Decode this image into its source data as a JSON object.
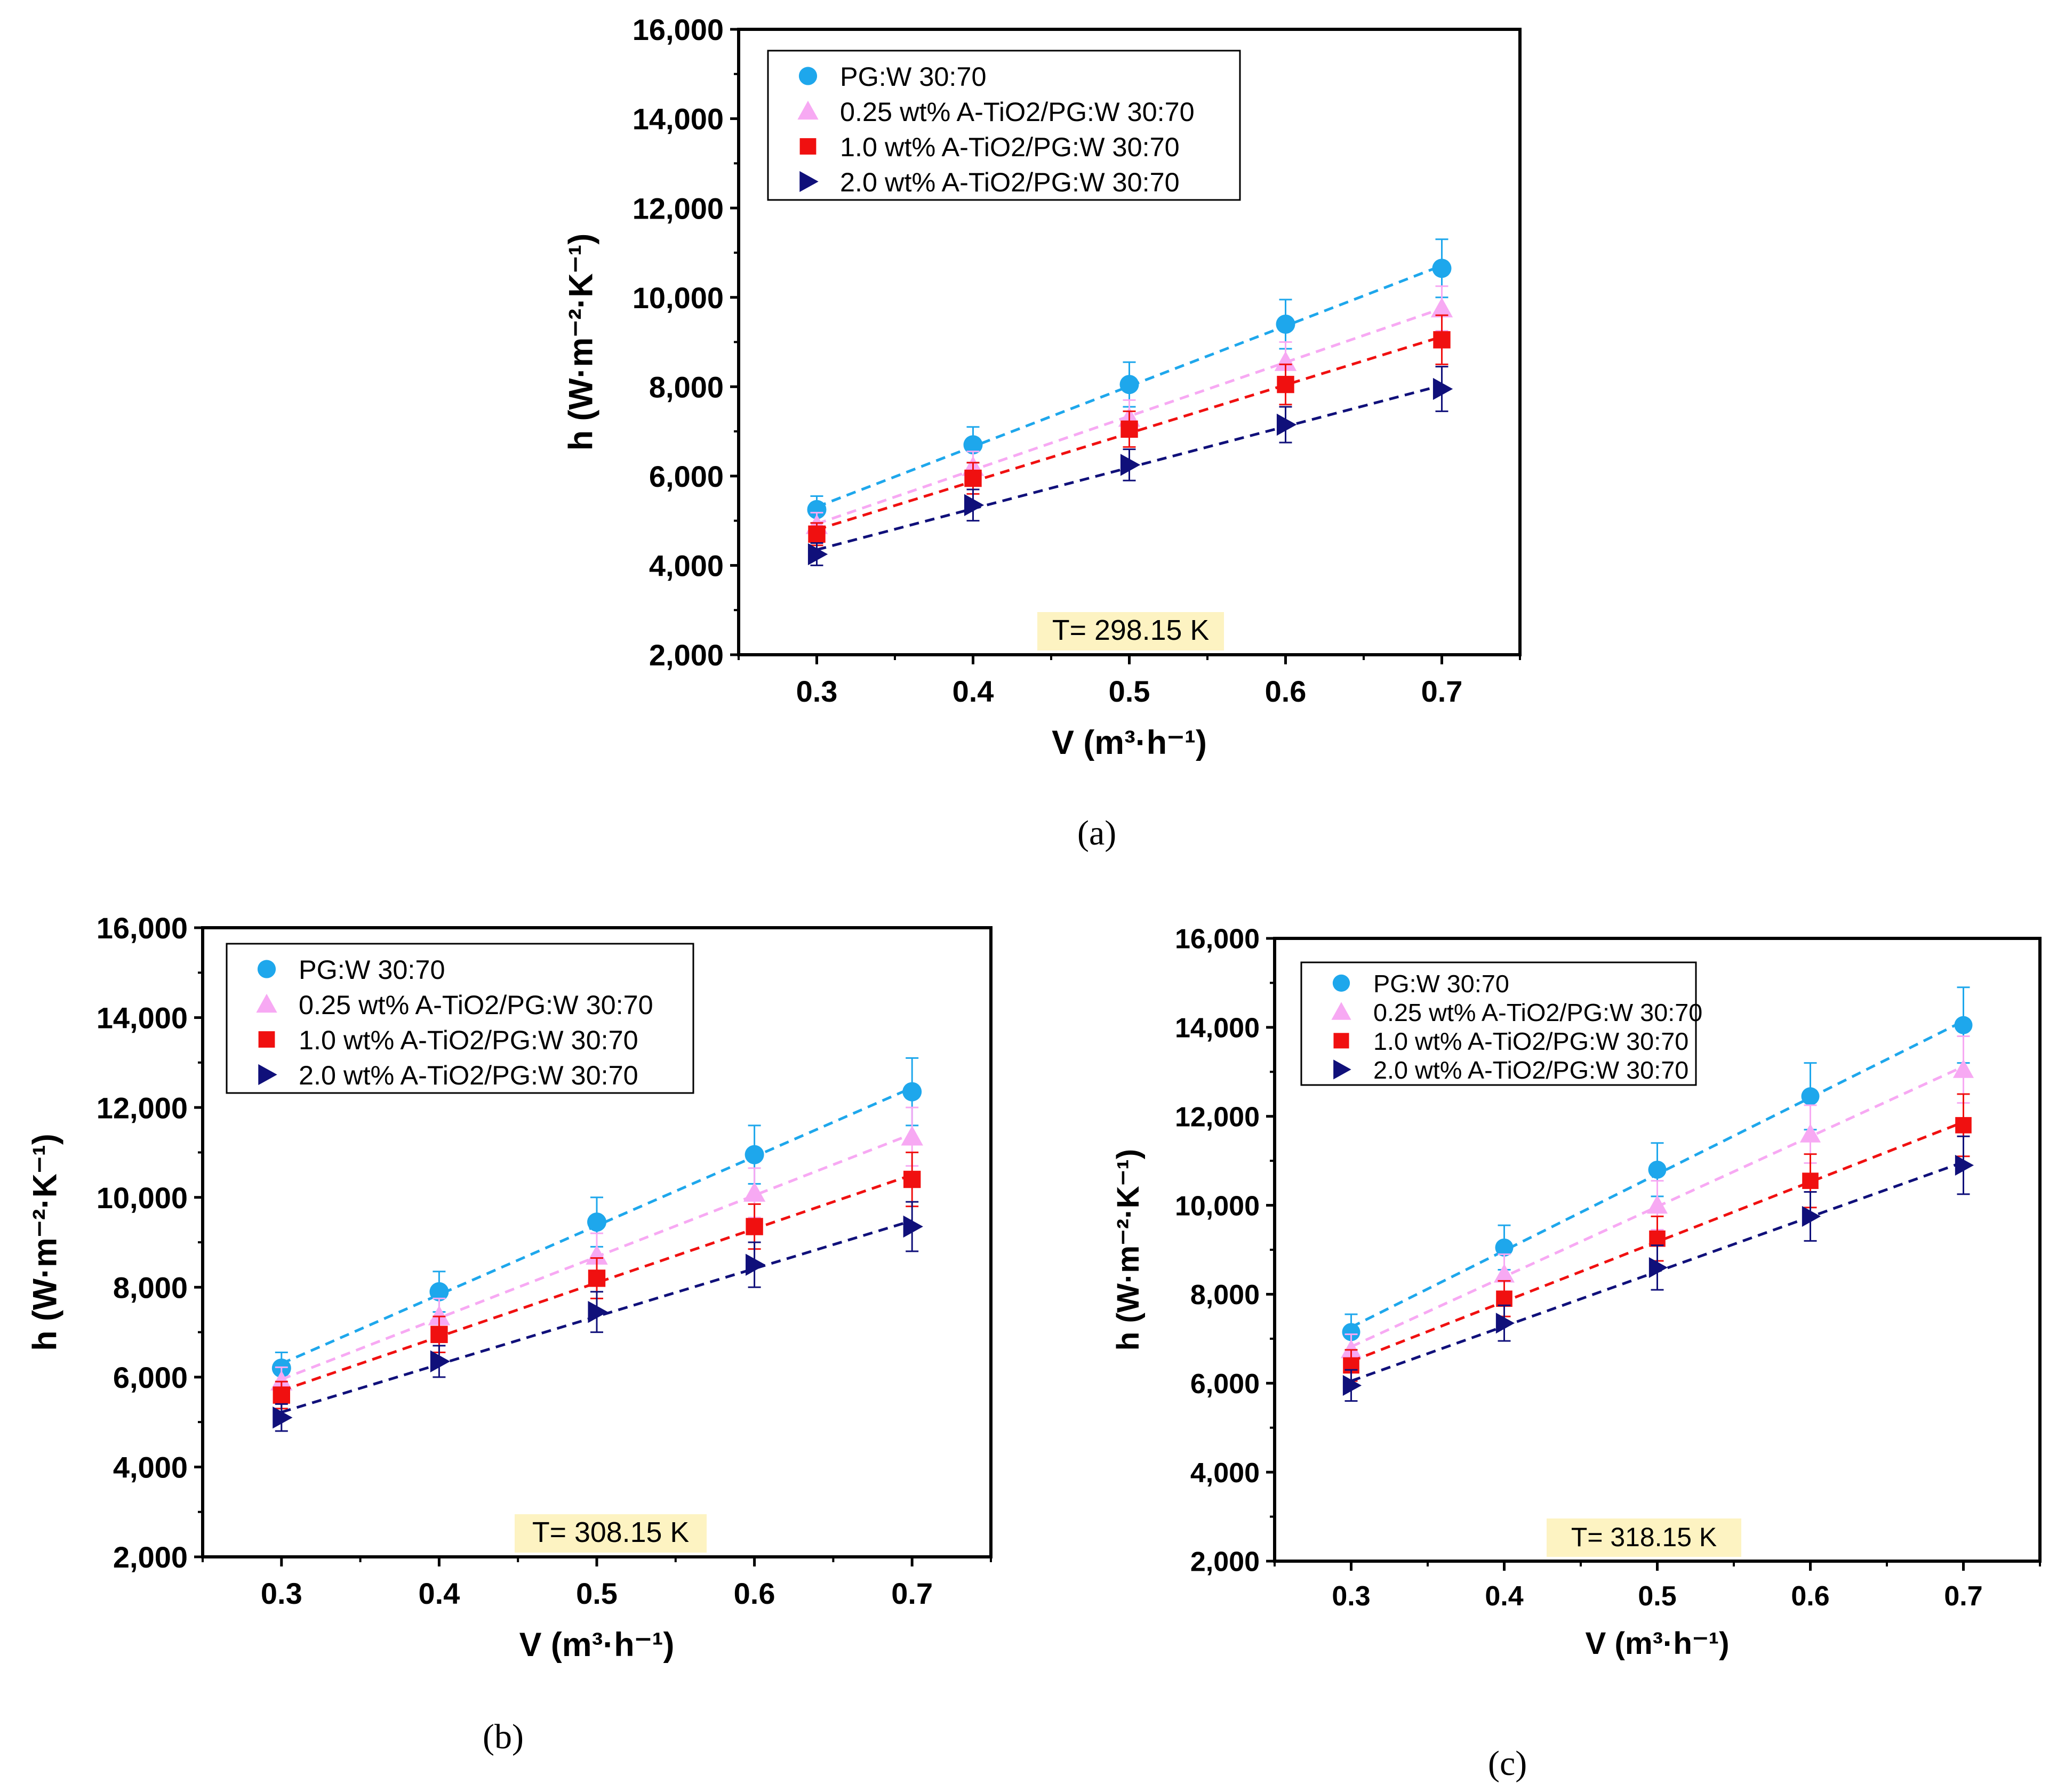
{
  "chart_data": [
    {
      "type": "scatter",
      "panel_label": "(a)",
      "annotation": "T= 298.15 K",
      "ylabel": "h (W·m⁻²·K⁻¹)",
      "xlabel": "V (m³·h⁻¹)",
      "x": [
        0.3,
        0.4,
        0.5,
        0.6,
        0.7
      ],
      "xticks": [
        "0.3",
        "0.4",
        "0.5",
        "0.6",
        "0.7"
      ],
      "yticks": [
        "2,000",
        "4,000",
        "6,000",
        "8,000",
        "10,000",
        "12,000",
        "14,000",
        "16,000"
      ],
      "xlim": [
        0.25,
        0.75
      ],
      "ylim": [
        2000,
        16000
      ],
      "series": [
        {
          "name": "PG:W 30:70",
          "marker": "circle",
          "color": "#1ea7ec",
          "values": [
            5250,
            6700,
            8050,
            9400,
            10650
          ],
          "errors": [
            300,
            400,
            500,
            550,
            650
          ]
        },
        {
          "name": "0.25 wt% A-TiO2/PG:W 30:70",
          "marker": "triangle-up",
          "color": "#f7a9f3",
          "values": [
            4900,
            6200,
            7300,
            8550,
            9750
          ],
          "errors": [
            280,
            350,
            400,
            450,
            500
          ]
        },
        {
          "name": "1.0 wt% A-TiO2/PG:W 30:70",
          "marker": "square",
          "color": "#f01010",
          "values": [
            4700,
            5950,
            7050,
            8050,
            9050
          ],
          "errors": [
            250,
            350,
            400,
            450,
            550
          ]
        },
        {
          "name": "2.0 wt% A-TiO2/PG:W 30:70",
          "marker": "triangle-right",
          "color": "#10107a",
          "values": [
            4250,
            5350,
            6250,
            7150,
            7950
          ],
          "errors": [
            250,
            350,
            350,
            400,
            500
          ]
        }
      ]
    },
    {
      "type": "scatter",
      "panel_label": "(b)",
      "annotation": "T= 308.15 K",
      "ylabel": "h (W·m⁻²·K⁻¹)",
      "xlabel": "V (m³·h⁻¹)",
      "x": [
        0.3,
        0.4,
        0.5,
        0.6,
        0.7
      ],
      "xticks": [
        "0.3",
        "0.4",
        "0.5",
        "0.6",
        "0.7"
      ],
      "yticks": [
        "2,000",
        "4,000",
        "6,000",
        "8,000",
        "10,000",
        "12,000",
        "14,000",
        "16,000"
      ],
      "xlim": [
        0.25,
        0.75
      ],
      "ylim": [
        2000,
        16000
      ],
      "series": [
        {
          "name": "PG:W 30:70",
          "marker": "circle",
          "color": "#1ea7ec",
          "values": [
            6200,
            7900,
            9450,
            10950,
            12350
          ],
          "errors": [
            350,
            450,
            550,
            650,
            750
          ]
        },
        {
          "name": "0.25 wt% A-TiO2/PG:W 30:70",
          "marker": "triangle-up",
          "color": "#f7a9f3",
          "values": [
            5900,
            7350,
            8700,
            10100,
            11350
          ],
          "errors": [
            320,
            400,
            500,
            550,
            650
          ]
        },
        {
          "name": "1.0 wt% A-TiO2/PG:W 30:70",
          "marker": "square",
          "color": "#f01010",
          "values": [
            5600,
            6950,
            8200,
            9350,
            10400
          ],
          "errors": [
            300,
            400,
            450,
            500,
            600
          ]
        },
        {
          "name": "2.0 wt% A-TiO2/PG:W 30:70",
          "marker": "triangle-right",
          "color": "#10107a",
          "values": [
            5100,
            6350,
            7450,
            8500,
            9350
          ],
          "errors": [
            300,
            350,
            450,
            500,
            550
          ]
        }
      ]
    },
    {
      "type": "scatter",
      "panel_label": "(c)",
      "annotation": "T= 318.15 K",
      "ylabel": "h (W·m⁻²·K⁻¹)",
      "xlabel": "V (m³·h⁻¹)",
      "x": [
        0.3,
        0.4,
        0.5,
        0.6,
        0.7
      ],
      "xticks": [
        "0.3",
        "0.4",
        "0.5",
        "0.6",
        "0.7"
      ],
      "yticks": [
        "2,000",
        "4,000",
        "6,000",
        "8,000",
        "10,000",
        "12,000",
        "14,000",
        "16,000"
      ],
      "xlim": [
        0.25,
        0.75
      ],
      "ylim": [
        2000,
        16000
      ],
      "series": [
        {
          "name": "PG:W 30:70",
          "marker": "circle",
          "color": "#1ea7ec",
          "values": [
            7150,
            9050,
            10800,
            12450,
            14050
          ],
          "errors": [
            400,
            500,
            600,
            750,
            850
          ]
        },
        {
          "name": "0.25 wt% A-TiO2/PG:W 30:70",
          "marker": "triangle-up",
          "color": "#f7a9f3",
          "values": [
            6750,
            8450,
            10000,
            11600,
            13050
          ],
          "errors": [
            350,
            450,
            550,
            650,
            750
          ]
        },
        {
          "name": "1.0 wt% A-TiO2/PG:W 30:70",
          "marker": "square",
          "color": "#f01010",
          "values": [
            6400,
            7900,
            9250,
            10550,
            11800
          ],
          "errors": [
            350,
            400,
            500,
            600,
            700
          ]
        },
        {
          "name": "2.0 wt% A-TiO2/PG:W 30:70",
          "marker": "triangle-right",
          "color": "#10107a",
          "values": [
            5950,
            7350,
            8600,
            9750,
            10900
          ],
          "errors": [
            350,
            400,
            500,
            550,
            650
          ]
        }
      ]
    }
  ]
}
